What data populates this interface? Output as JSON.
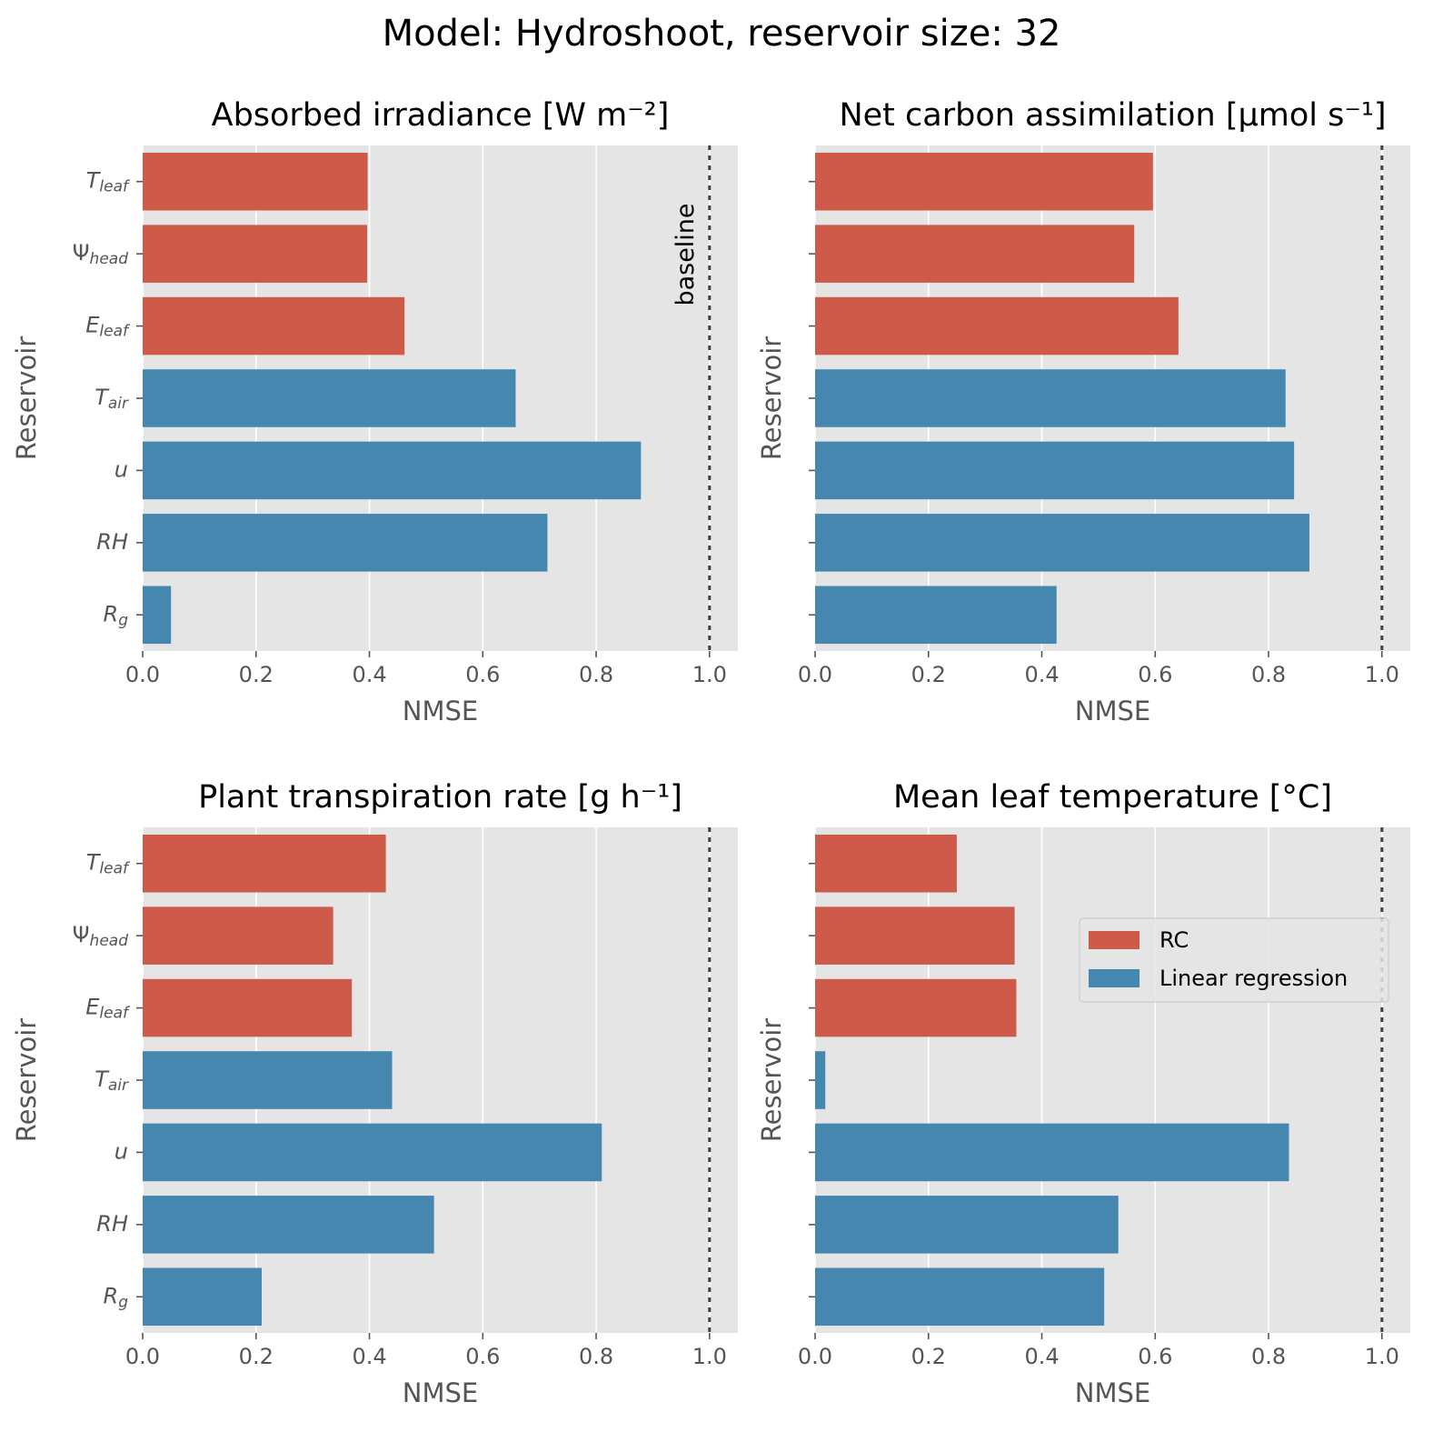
{
  "figure": {
    "title": "Model: Hydroshoot, reservoir size: 32"
  },
  "colors": {
    "rc": "#CE5A4A",
    "lr": "#4587AE",
    "panel_bg": "#E5E5E5",
    "grid": "#FFFFFF",
    "tick": "#555555",
    "baseline": "#404040"
  },
  "baseline_label": "baseline",
  "legend": {
    "items": [
      {
        "label": "RC",
        "color": "#CE5A4A"
      },
      {
        "label": "Linear regression",
        "color": "#4587AE"
      }
    ]
  },
  "chart_data": [
    {
      "type": "bar",
      "orientation": "horizontal",
      "title": "Absorbed irradiance [W m⁻²]",
      "xlabel": "NMSE",
      "ylabel": "Reservoir",
      "xlim": [
        0,
        1.05
      ],
      "xticks": [
        "0.0",
        "0.2",
        "0.4",
        "0.6",
        "0.8",
        "1.0"
      ],
      "categories": [
        "T_leaf",
        "Ψ_head",
        "E_leaf",
        "T_air",
        "u",
        "RH",
        "R_g"
      ],
      "series": [
        {
          "name": "RC",
          "values": [
            0.397,
            0.396,
            0.462,
            null,
            null,
            null,
            null
          ]
        },
        {
          "name": "Linear regression",
          "values": [
            null,
            null,
            null,
            0.658,
            0.879,
            0.714,
            0.05
          ]
        }
      ],
      "baseline": 1.0,
      "baseline_labeled": true,
      "legend": false,
      "y_ticklabels": true
    },
    {
      "type": "bar",
      "orientation": "horizontal",
      "title": "Net carbon assimilation [μmol s⁻¹]",
      "xlabel": "NMSE",
      "ylabel": "Reservoir",
      "xlim": [
        0,
        1.05
      ],
      "xticks": [
        "0.0",
        "0.2",
        "0.4",
        "0.6",
        "0.8",
        "1.0"
      ],
      "categories": [
        "T_leaf",
        "Ψ_head",
        "E_leaf",
        "T_air",
        "u",
        "RH",
        "R_g"
      ],
      "series": [
        {
          "name": "RC",
          "values": [
            0.596,
            0.563,
            0.641,
            null,
            null,
            null,
            null
          ]
        },
        {
          "name": "Linear regression",
          "values": [
            null,
            null,
            null,
            0.83,
            0.845,
            0.872,
            0.426
          ]
        }
      ],
      "baseline": 1.0,
      "baseline_labeled": false,
      "legend": false,
      "y_ticklabels": false
    },
    {
      "type": "bar",
      "orientation": "horizontal",
      "title": "Plant transpiration rate [g h⁻¹]",
      "xlabel": "NMSE",
      "ylabel": "Reservoir",
      "xlim": [
        0,
        1.05
      ],
      "xticks": [
        "0.0",
        "0.2",
        "0.4",
        "0.6",
        "0.8",
        "1.0"
      ],
      "categories": [
        "T_leaf",
        "Ψ_head",
        "E_leaf",
        "T_air",
        "u",
        "RH",
        "R_g"
      ],
      "series": [
        {
          "name": "RC",
          "values": [
            0.429,
            0.336,
            0.369,
            null,
            null,
            null,
            null
          ]
        },
        {
          "name": "Linear regression",
          "values": [
            null,
            null,
            null,
            0.44,
            0.81,
            0.514,
            0.21
          ]
        }
      ],
      "baseline": 1.0,
      "baseline_labeled": false,
      "legend": false,
      "y_ticklabels": true
    },
    {
      "type": "bar",
      "orientation": "horizontal",
      "title": "Mean leaf temperature [°C]",
      "xlabel": "NMSE",
      "ylabel": "Reservoir",
      "xlim": [
        0,
        1.05
      ],
      "xticks": [
        "0.0",
        "0.2",
        "0.4",
        "0.6",
        "0.8",
        "1.0"
      ],
      "categories": [
        "T_leaf",
        "Ψ_head",
        "E_leaf",
        "T_air",
        "u",
        "RH",
        "R_g"
      ],
      "series": [
        {
          "name": "RC",
          "values": [
            0.25,
            0.352,
            0.355,
            null,
            null,
            null,
            null
          ]
        },
        {
          "name": "Linear regression",
          "values": [
            null,
            null,
            null,
            0.018,
            0.836,
            0.535,
            0.51
          ]
        }
      ],
      "baseline": 1.0,
      "baseline_labeled": false,
      "legend": true,
      "legend_position": "center-right",
      "y_ticklabels": false
    }
  ]
}
